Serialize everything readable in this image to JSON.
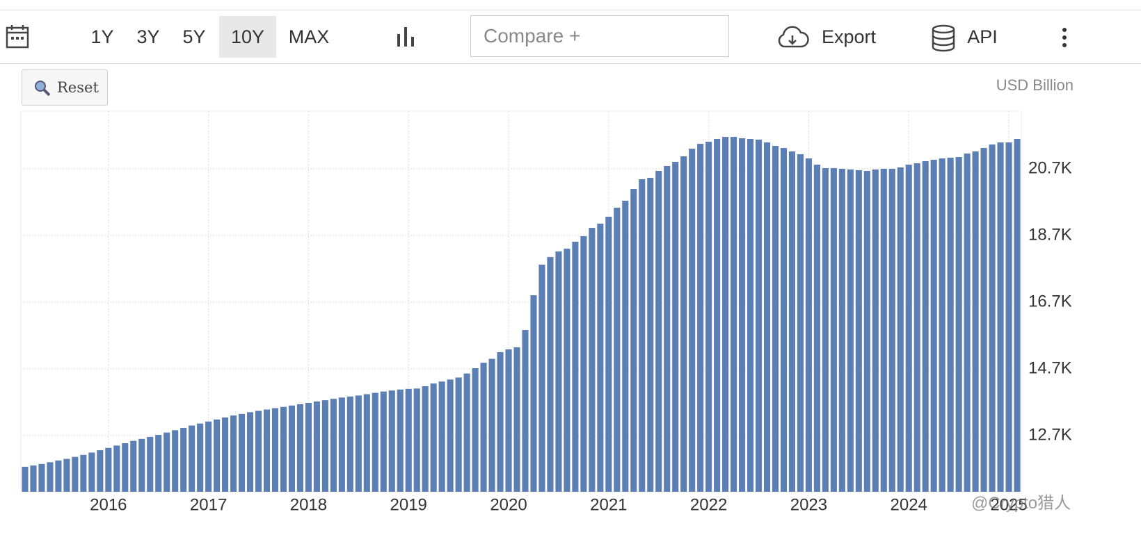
{
  "toolbar": {
    "ranges": [
      "1Y",
      "3Y",
      "5Y",
      "10Y",
      "MAX"
    ],
    "compare": "Compare +",
    "export": "Export",
    "api": "API",
    "reset": "Reset"
  },
  "watermark": "@Crypto猎人",
  "chart_data": {
    "type": "bar",
    "unit": "USD Billion",
    "color": "#5b7fb5",
    "grid": true,
    "categories": [
      null,
      null,
      null,
      null,
      null,
      null,
      null,
      null,
      null,
      null,
      "2016",
      null,
      null,
      null,
      null,
      null,
      null,
      null,
      null,
      null,
      null,
      null,
      "2017",
      null,
      null,
      null,
      null,
      null,
      null,
      null,
      null,
      null,
      null,
      null,
      "2018",
      null,
      null,
      null,
      null,
      null,
      null,
      null,
      null,
      null,
      null,
      null,
      "2019",
      null,
      null,
      null,
      null,
      null,
      null,
      null,
      null,
      null,
      null,
      null,
      "2020",
      null,
      null,
      null,
      null,
      null,
      null,
      null,
      null,
      null,
      null,
      null,
      "2021",
      null,
      null,
      null,
      null,
      null,
      null,
      null,
      null,
      null,
      null,
      null,
      "2022",
      null,
      null,
      null,
      null,
      null,
      null,
      null,
      null,
      null,
      null,
      null,
      "2023",
      null,
      null,
      null,
      null,
      null,
      null,
      null,
      null,
      null,
      null,
      null,
      "2024",
      null,
      null,
      null,
      null,
      null,
      null,
      null,
      null,
      null,
      null,
      null,
      "2025",
      null
    ],
    "values": [
      11763,
      11800,
      11850,
      11900,
      11950,
      12000,
      12060,
      12120,
      12190,
      12260,
      12330,
      12400,
      12470,
      12540,
      12600,
      12660,
      12720,
      12790,
      12860,
      12930,
      13000,
      13060,
      13120,
      13180,
      13240,
      13300,
      13350,
      13400,
      13440,
      13480,
      13520,
      13560,
      13600,
      13640,
      13680,
      13720,
      13760,
      13800,
      13840,
      13870,
      13900,
      13940,
      13980,
      14020,
      14050,
      14080,
      14100,
      14110,
      14180,
      14260,
      14320,
      14380,
      14440,
      14560,
      14720,
      14880,
      15000,
      15200,
      15283,
      15345,
      15866,
      16908,
      17824,
      18053,
      18220,
      18303,
      18512,
      18678,
      18928,
      19053,
      19262,
      19532,
      19741,
      20095,
      20386,
      20428,
      20637,
      20783,
      20908,
      21074,
      21303,
      21449,
      21511,
      21595,
      21657,
      21657,
      21615,
      21595,
      21574,
      21490,
      21386,
      21324,
      21220,
      21136,
      21011,
      20824,
      20720,
      20720,
      20700,
      20678,
      20657,
      20637,
      20678,
      20700,
      20700,
      20741,
      20824,
      20866,
      20928,
      20970,
      21011,
      21032,
      21053,
      21157,
      21220,
      21324,
      21428,
      21490,
      21490,
      21595
    ],
    "ylim": [
      11013,
      22429
    ],
    "yticks": [
      {
        "value": 12700,
        "label": "12.7K"
      },
      {
        "value": 14700,
        "label": "14.7K"
      },
      {
        "value": 16700,
        "label": "16.7K"
      },
      {
        "value": 18700,
        "label": "18.7K"
      },
      {
        "value": 20700,
        "label": "20.7K"
      }
    ]
  }
}
